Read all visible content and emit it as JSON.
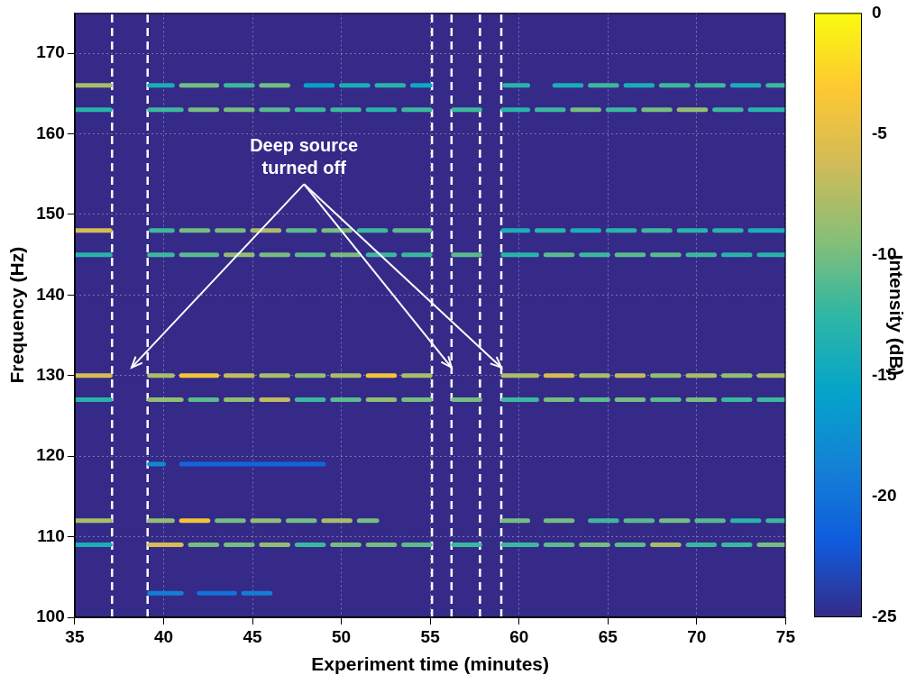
{
  "chart_data": {
    "type": "heatmap",
    "xlabel": "Experiment time (minutes)",
    "ylabel": "Frequency (Hz)",
    "xlim": [
      35,
      75
    ],
    "xticks": [
      35,
      40,
      45,
      50,
      55,
      60,
      65,
      70,
      75
    ],
    "ylim": [
      100,
      175
    ],
    "yticks": [
      100,
      110,
      120,
      130,
      140,
      150,
      160,
      170
    ],
    "grid": true,
    "colorbar": {
      "label": "Intensity (dB)",
      "range": [
        -25,
        0
      ],
      "ticks": [
        0,
        -5,
        -10,
        -15,
        -20,
        -25
      ]
    },
    "tones": [
      {
        "frequency": 166,
        "segments": [
          [
            35,
            37,
            -8
          ],
          [
            39.2,
            40.5,
            -14
          ],
          [
            41,
            43,
            -10
          ],
          [
            43.5,
            45,
            -12
          ],
          [
            45.5,
            47,
            -10
          ],
          [
            48,
            49.5,
            -16
          ],
          [
            50,
            51.5,
            -14
          ],
          [
            52,
            53.5,
            -13
          ],
          [
            54,
            55,
            -15
          ],
          [
            59.2,
            60.5,
            -13
          ],
          [
            62,
            63.5,
            -14
          ],
          [
            64,
            65.5,
            -12
          ],
          [
            66,
            67.5,
            -14
          ],
          [
            68,
            69.5,
            -12
          ],
          [
            70,
            71.5,
            -12
          ],
          [
            72,
            73.5,
            -14
          ],
          [
            74,
            75,
            -12
          ]
        ]
      },
      {
        "frequency": 163,
        "segments": [
          [
            35,
            37,
            -13
          ],
          [
            39.2,
            41,
            -12
          ],
          [
            41.5,
            43,
            -10
          ],
          [
            43.5,
            45,
            -10
          ],
          [
            45.5,
            47,
            -11
          ],
          [
            47.5,
            49,
            -12
          ],
          [
            49.5,
            51,
            -12
          ],
          [
            51.5,
            53,
            -13
          ],
          [
            53.5,
            55,
            -12
          ],
          [
            56.3,
            57.8,
            -12
          ],
          [
            59.1,
            60.5,
            -13
          ],
          [
            61,
            62.5,
            -12
          ],
          [
            63,
            64.5,
            -10
          ],
          [
            65,
            66.5,
            -12
          ],
          [
            67,
            68.5,
            -10
          ],
          [
            69,
            70.5,
            -9
          ],
          [
            71,
            72.5,
            -12
          ],
          [
            73,
            75,
            -13
          ]
        ]
      },
      {
        "frequency": 148,
        "segments": [
          [
            35,
            37,
            -6
          ],
          [
            39.3,
            40.5,
            -12
          ],
          [
            41,
            42.5,
            -10
          ],
          [
            43,
            44.5,
            -10
          ],
          [
            45,
            46.5,
            -8
          ],
          [
            47,
            48.5,
            -11
          ],
          [
            49,
            50.5,
            -10
          ],
          [
            51,
            52.5,
            -12
          ],
          [
            53,
            55,
            -11
          ],
          [
            59.1,
            60.5,
            -14
          ],
          [
            61,
            62.5,
            -13
          ],
          [
            63,
            64.5,
            -14
          ],
          [
            65,
            66.5,
            -13
          ],
          [
            67,
            68.5,
            -12
          ],
          [
            69,
            70.5,
            -13
          ],
          [
            71,
            72.5,
            -13
          ],
          [
            73,
            75,
            -14
          ]
        ]
      },
      {
        "frequency": 145,
        "segments": [
          [
            35,
            37,
            -13
          ],
          [
            39.2,
            40.5,
            -12
          ],
          [
            41,
            43,
            -11
          ],
          [
            43.5,
            45,
            -9
          ],
          [
            45.5,
            47,
            -10
          ],
          [
            47.5,
            49,
            -11
          ],
          [
            49.5,
            51,
            -10
          ],
          [
            51.5,
            53,
            -12
          ],
          [
            53.5,
            55,
            -12
          ],
          [
            56.3,
            57.8,
            -11
          ],
          [
            59.1,
            61,
            -13
          ],
          [
            61.5,
            63,
            -11
          ],
          [
            63.5,
            65,
            -12
          ],
          [
            65.5,
            67,
            -11
          ],
          [
            67.5,
            69,
            -11
          ],
          [
            69.5,
            71,
            -12
          ],
          [
            71.5,
            73,
            -13
          ],
          [
            73.5,
            75,
            -13
          ]
        ]
      },
      {
        "frequency": 130,
        "segments": [
          [
            35,
            37,
            -6
          ],
          [
            39.2,
            40.5,
            -8
          ],
          [
            41,
            43,
            -4
          ],
          [
            43.5,
            45,
            -7
          ],
          [
            45.5,
            47,
            -8
          ],
          [
            47.5,
            49,
            -9
          ],
          [
            49.5,
            51,
            -8
          ],
          [
            51.5,
            53,
            -4
          ],
          [
            53.5,
            55,
            -8
          ],
          [
            59.1,
            61,
            -8
          ],
          [
            61.5,
            63,
            -6
          ],
          [
            63.5,
            65,
            -8
          ],
          [
            65.5,
            67,
            -7
          ],
          [
            67.5,
            69,
            -9
          ],
          [
            69.5,
            71,
            -8
          ],
          [
            71.5,
            73,
            -9
          ],
          [
            73.5,
            75,
            -8
          ]
        ]
      },
      {
        "frequency": 127,
        "segments": [
          [
            35,
            37,
            -13
          ],
          [
            39.2,
            41,
            -9
          ],
          [
            41.5,
            43,
            -11
          ],
          [
            43.5,
            45,
            -9
          ],
          [
            45.5,
            47,
            -7
          ],
          [
            47.5,
            49,
            -12
          ],
          [
            49.5,
            51,
            -11
          ],
          [
            51.5,
            53,
            -9
          ],
          [
            53.5,
            55,
            -10
          ],
          [
            56.3,
            57.8,
            -10
          ],
          [
            59.1,
            61,
            -12
          ],
          [
            61.5,
            63,
            -10
          ],
          [
            63.5,
            65,
            -11
          ],
          [
            65.5,
            67,
            -10
          ],
          [
            67.5,
            69,
            -11
          ],
          [
            69.5,
            71,
            -10
          ],
          [
            71.5,
            73,
            -12
          ],
          [
            73.5,
            75,
            -12
          ]
        ]
      },
      {
        "frequency": 119,
        "segments": [
          [
            39.2,
            40,
            -18
          ],
          [
            41,
            49,
            -21
          ]
        ]
      },
      {
        "frequency": 112,
        "segments": [
          [
            35,
            37,
            -8
          ],
          [
            39.2,
            40.5,
            -9
          ],
          [
            41,
            42.5,
            -4
          ],
          [
            43,
            44.5,
            -10
          ],
          [
            45,
            46.5,
            -9
          ],
          [
            47,
            48.5,
            -10
          ],
          [
            49,
            50.5,
            -8
          ],
          [
            51,
            52,
            -10
          ],
          [
            59.1,
            60.5,
            -10
          ],
          [
            61.5,
            63,
            -10
          ],
          [
            64,
            65.5,
            -12
          ],
          [
            66,
            67.5,
            -11
          ],
          [
            68,
            69.5,
            -10
          ],
          [
            70,
            71.5,
            -11
          ],
          [
            72,
            73.5,
            -13
          ],
          [
            74,
            75,
            -12
          ]
        ]
      },
      {
        "frequency": 109,
        "segments": [
          [
            35,
            37,
            -14
          ],
          [
            39.2,
            41,
            -6
          ],
          [
            41.5,
            43,
            -10
          ],
          [
            43.5,
            45,
            -10
          ],
          [
            45.5,
            47,
            -9
          ],
          [
            47.5,
            49,
            -12
          ],
          [
            49.5,
            51,
            -10
          ],
          [
            51.5,
            53,
            -10
          ],
          [
            53.5,
            55,
            -11
          ],
          [
            56.3,
            57.8,
            -12
          ],
          [
            59.1,
            61,
            -12
          ],
          [
            61.5,
            63,
            -11
          ],
          [
            63.5,
            65,
            -10
          ],
          [
            65.5,
            67,
            -11
          ],
          [
            67.5,
            69,
            -8
          ],
          [
            69.5,
            71,
            -12
          ],
          [
            71.5,
            73,
            -12
          ],
          [
            73.5,
            75,
            -10
          ]
        ]
      },
      {
        "frequency": 103,
        "segments": [
          [
            39.2,
            41,
            -19
          ],
          [
            42,
            44,
            -20
          ],
          [
            44.5,
            46,
            -19
          ]
        ]
      }
    ],
    "source_off_times": [
      37.1,
      39.1,
      55.1,
      56.2,
      57.8,
      59.0
    ],
    "annotation": {
      "text": "Deep source turned off",
      "x": 47.9,
      "y": 157,
      "arrows": [
        [
          38.2,
          131
        ],
        [
          56.2,
          131
        ],
        [
          59.0,
          131
        ]
      ]
    }
  }
}
